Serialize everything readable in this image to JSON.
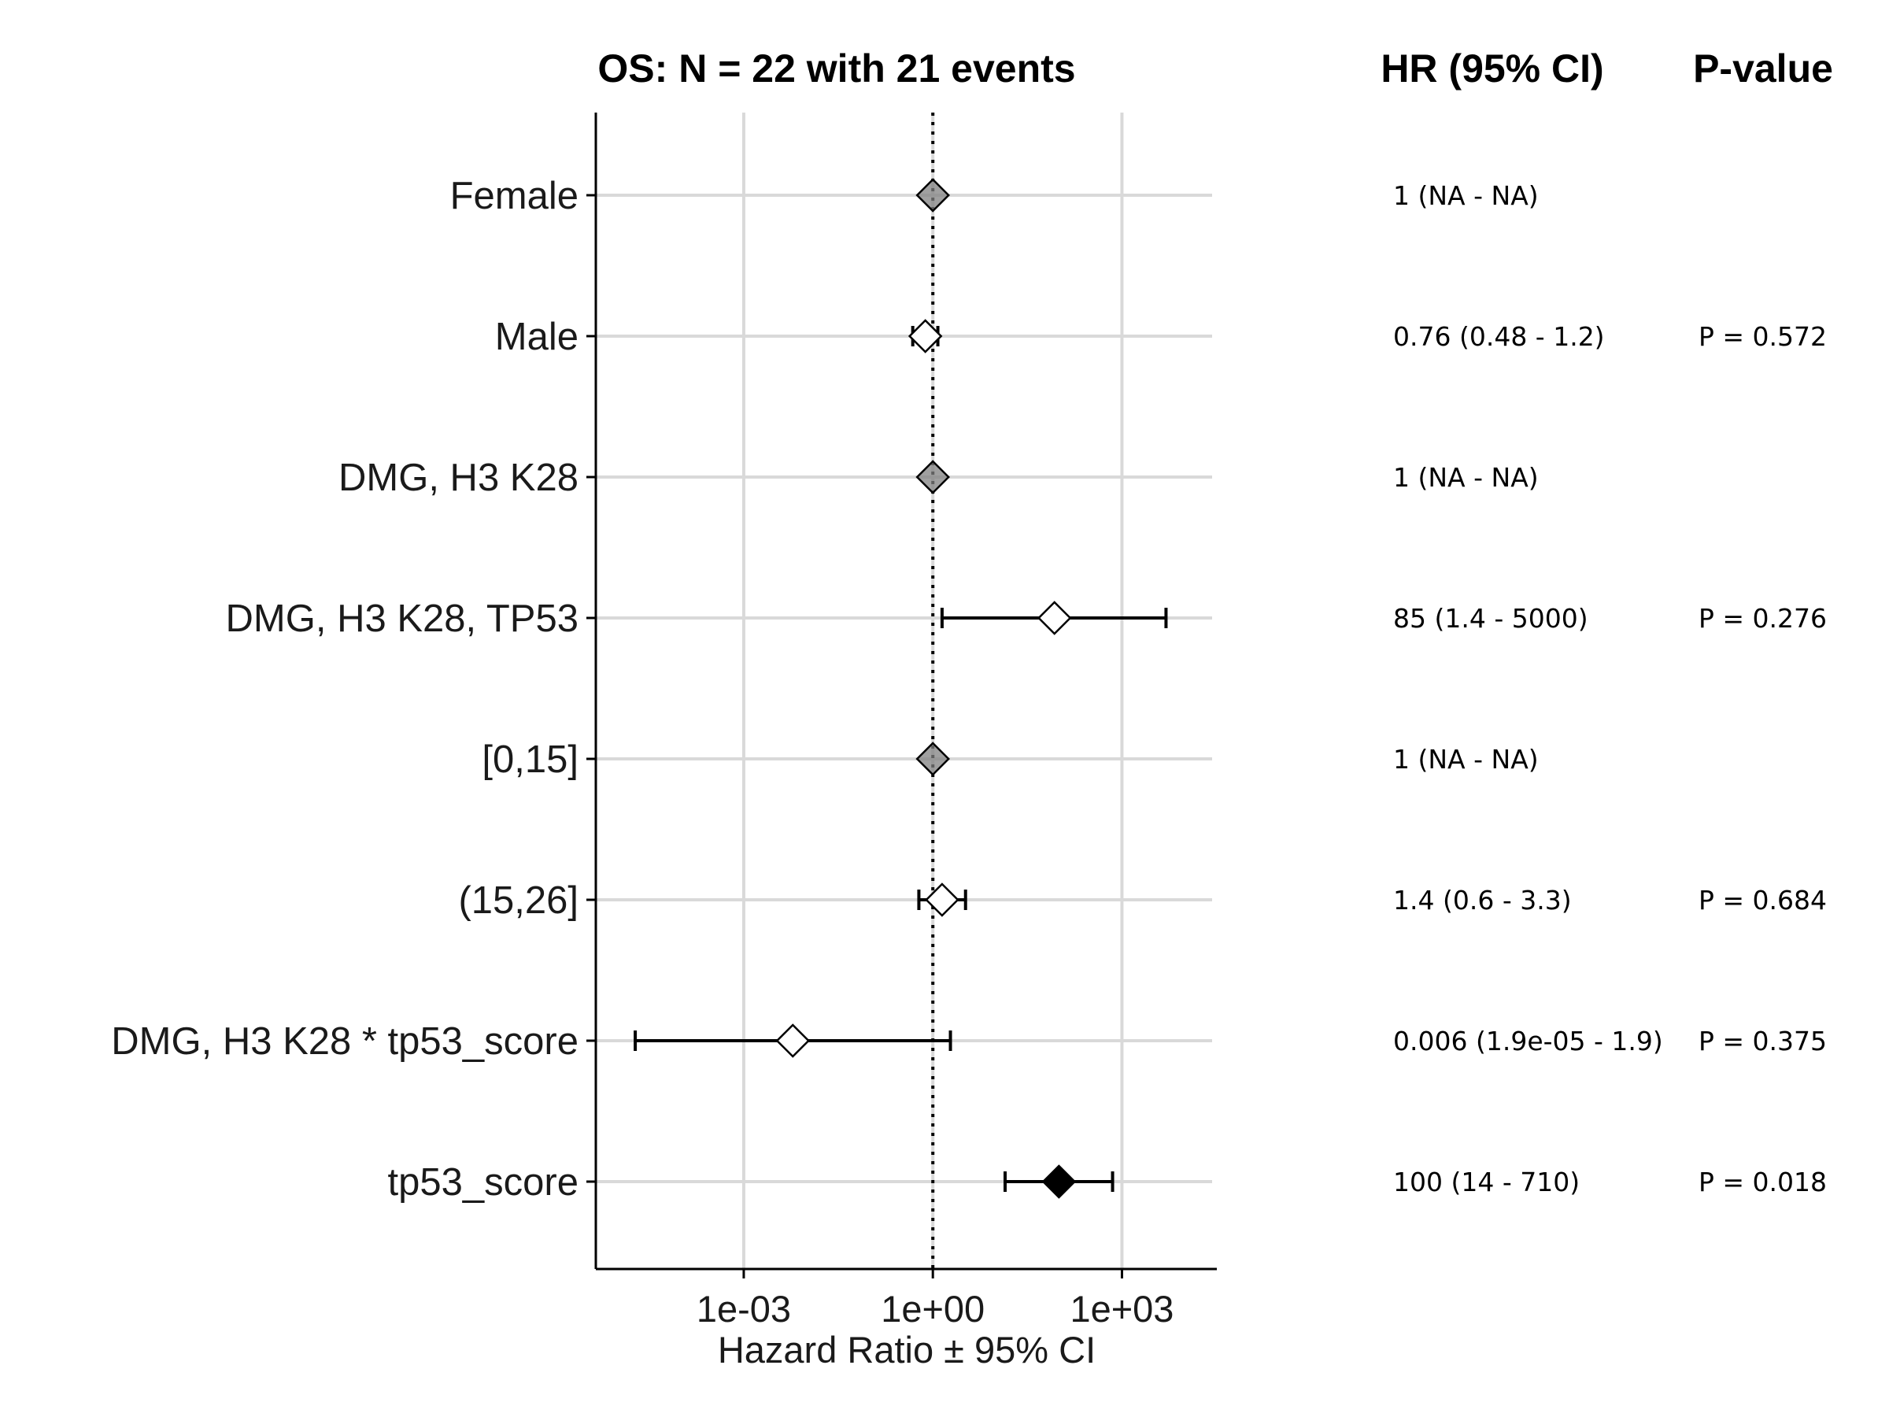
{
  "chart_data": {
    "type": "forest",
    "title": "OS: N = 22 with 21 events",
    "xlabel": "Hazard Ratio ± 95% CI",
    "x_scale": "log10",
    "x_ticks": [
      0.001,
      1,
      1000
    ],
    "x_tick_labels": [
      "1e-03",
      "1e+00",
      "1e+03"
    ],
    "xlim": [
      4.5e-06,
      32000
    ],
    "reference_line": 1,
    "grid": "vertical major gridlines and horizontal row lines",
    "table_headers": {
      "hr": "HR (95% CI)",
      "p": "P-value"
    },
    "colors": {
      "reference": "#808080",
      "significant": "#000000",
      "nonsignificant": "#ffffff",
      "grid": "#d9d9d9"
    },
    "rows": [
      {
        "label": "Female",
        "hr": 1,
        "lower": null,
        "upper": null,
        "hr_text": "1 (NA - NA)",
        "p_text": "",
        "style": "reference"
      },
      {
        "label": "Male",
        "hr": 0.76,
        "lower": 0.48,
        "upper": 1.2,
        "hr_text": "0.76 (0.48 - 1.2)",
        "p_text": "P = 0.572",
        "style": "nonsignificant"
      },
      {
        "label": "DMG, H3 K28",
        "hr": 1,
        "lower": null,
        "upper": null,
        "hr_text": "1 (NA - NA)",
        "p_text": "",
        "style": "reference"
      },
      {
        "label": "DMG, H3 K28, TP53",
        "hr": 85,
        "lower": 1.4,
        "upper": 5000,
        "hr_text": "85 (1.4 - 5000)",
        "p_text": "P = 0.276",
        "style": "nonsignificant"
      },
      {
        "label": "[0,15]",
        "hr": 1,
        "lower": null,
        "upper": null,
        "hr_text": "1 (NA - NA)",
        "p_text": "",
        "style": "reference"
      },
      {
        "label": "(15,26]",
        "hr": 1.4,
        "lower": 0.6,
        "upper": 3.3,
        "hr_text": "1.4 (0.6 - 3.3)",
        "p_text": "P = 0.684",
        "style": "nonsignificant"
      },
      {
        "label": "DMG, H3 K28 * tp53_score",
        "hr": 0.006,
        "lower": 1.9e-05,
        "upper": 1.9,
        "hr_text": "0.006 (1.9e-05 - 1.9)",
        "p_text": "P = 0.375",
        "style": "nonsignificant"
      },
      {
        "label": "tp53_score",
        "hr": 100,
        "lower": 14,
        "upper": 710,
        "hr_text": "100 (14 - 710)",
        "p_text": "P = 0.018",
        "style": "significant"
      }
    ]
  }
}
